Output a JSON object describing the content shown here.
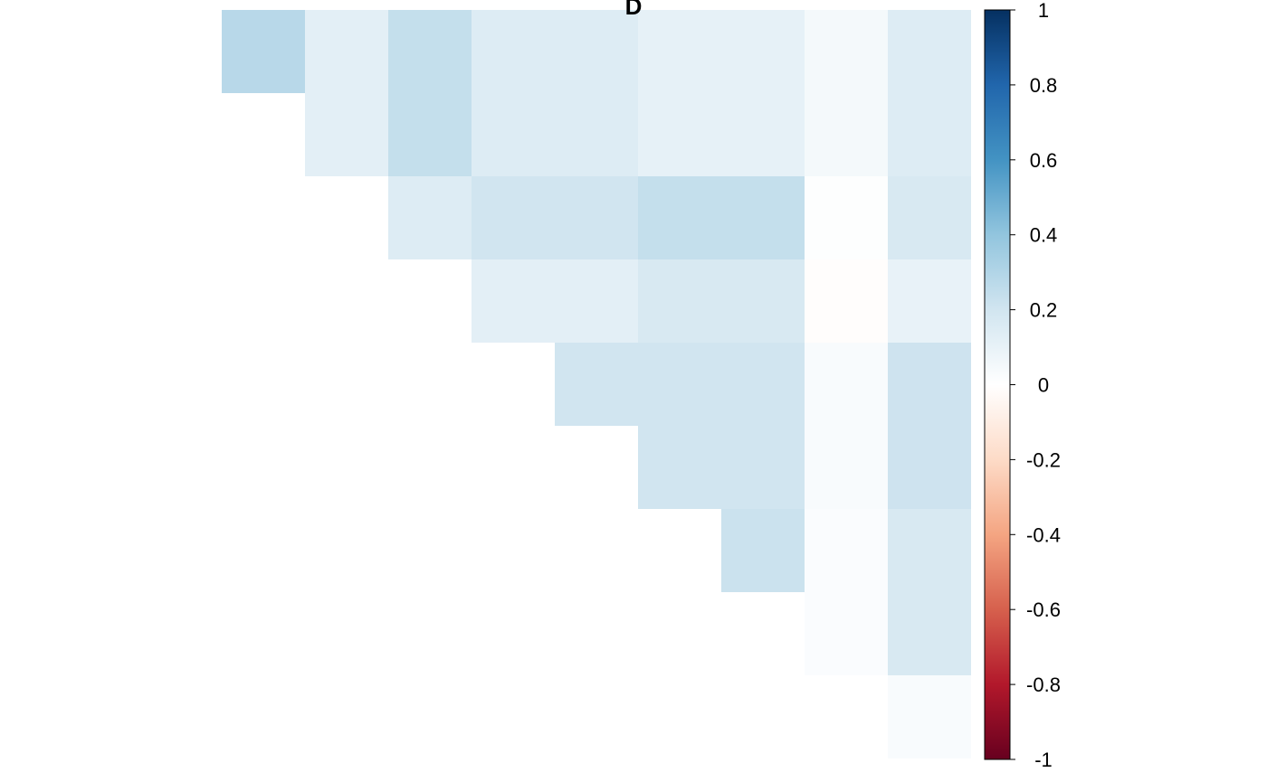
{
  "chart_data": {
    "type": "heatmap",
    "title": "D",
    "grid": false,
    "legend": "right",
    "colorbar": {
      "min": -1,
      "max": 1,
      "ticks": [
        1,
        0.8,
        0.6,
        0.4,
        0.2,
        0,
        -0.2,
        -0.4,
        -0.6,
        -0.8,
        -1
      ],
      "tick_labels": [
        "1",
        "0.8",
        "0.6",
        "0.4",
        "0.2",
        "0",
        "-0.2",
        "-0.4",
        "-0.6",
        "-0.8",
        "-1"
      ],
      "colors": [
        "#67001F",
        "#B2182B",
        "#D6604D",
        "#F4A582",
        "#FDDBC7",
        "#FFFFFF",
        "#D1E5F0",
        "#92C5DE",
        "#4393C3",
        "#2166AC",
        "#053061"
      ]
    },
    "cells": [
      {
        "row": 0,
        "col": 0,
        "colspan": 1,
        "value": 0.28
      },
      {
        "row": 0,
        "col": 1,
        "colspan": 1,
        "value": 0.12
      },
      {
        "row": 0,
        "col": 2,
        "colspan": 1,
        "value": 0.24
      },
      {
        "row": 0,
        "col": 3,
        "colspan": 2,
        "value": 0.15
      },
      {
        "row": 0,
        "col": 5,
        "colspan": 2,
        "value": 0.11
      },
      {
        "row": 0,
        "col": 7,
        "colspan": 1,
        "value": 0.05
      },
      {
        "row": 0,
        "col": 8,
        "colspan": 1,
        "value": 0.15
      },
      {
        "row": 1,
        "col": 1,
        "colspan": 1,
        "value": 0.12
      },
      {
        "row": 1,
        "col": 2,
        "colspan": 1,
        "value": 0.24
      },
      {
        "row": 1,
        "col": 3,
        "colspan": 2,
        "value": 0.15
      },
      {
        "row": 1,
        "col": 5,
        "colspan": 2,
        "value": 0.11
      },
      {
        "row": 1,
        "col": 7,
        "colspan": 1,
        "value": 0.05
      },
      {
        "row": 1,
        "col": 8,
        "colspan": 1,
        "value": 0.15
      },
      {
        "row": 2,
        "col": 2,
        "colspan": 1,
        "value": 0.15
      },
      {
        "row": 2,
        "col": 3,
        "colspan": 2,
        "value": 0.2
      },
      {
        "row": 2,
        "col": 5,
        "colspan": 2,
        "value": 0.24
      },
      {
        "row": 2,
        "col": 7,
        "colspan": 1,
        "value": 0.01
      },
      {
        "row": 2,
        "col": 8,
        "colspan": 1,
        "value": 0.17
      },
      {
        "row": 3,
        "col": 3,
        "colspan": 2,
        "value": 0.12
      },
      {
        "row": 3,
        "col": 5,
        "colspan": 2,
        "value": 0.17
      },
      {
        "row": 3,
        "col": 7,
        "colspan": 1,
        "value": -0.01
      },
      {
        "row": 3,
        "col": 8,
        "colspan": 1,
        "value": 0.1
      },
      {
        "row": 4,
        "col": 4,
        "colspan": 1,
        "value": 0.2
      },
      {
        "row": 4,
        "col": 5,
        "colspan": 2,
        "value": 0.2
      },
      {
        "row": 4,
        "col": 7,
        "colspan": 1,
        "value": 0.03
      },
      {
        "row": 4,
        "col": 8,
        "colspan": 1,
        "value": 0.21
      },
      {
        "row": 5,
        "col": 5,
        "colspan": 2,
        "value": 0.2
      },
      {
        "row": 5,
        "col": 7,
        "colspan": 1,
        "value": 0.03
      },
      {
        "row": 5,
        "col": 8,
        "colspan": 1,
        "value": 0.21
      },
      {
        "row": 6,
        "col": 6,
        "colspan": 1,
        "value": 0.22
      },
      {
        "row": 6,
        "col": 7,
        "colspan": 1,
        "value": 0.02
      },
      {
        "row": 6,
        "col": 8,
        "colspan": 1,
        "value": 0.17
      },
      {
        "row": 7,
        "col": 7,
        "colspan": 1,
        "value": 0.02
      },
      {
        "row": 7,
        "col": 8,
        "colspan": 1,
        "value": 0.17
      },
      {
        "row": 8,
        "col": 8,
        "colspan": 1,
        "value": 0.03
      }
    ]
  }
}
